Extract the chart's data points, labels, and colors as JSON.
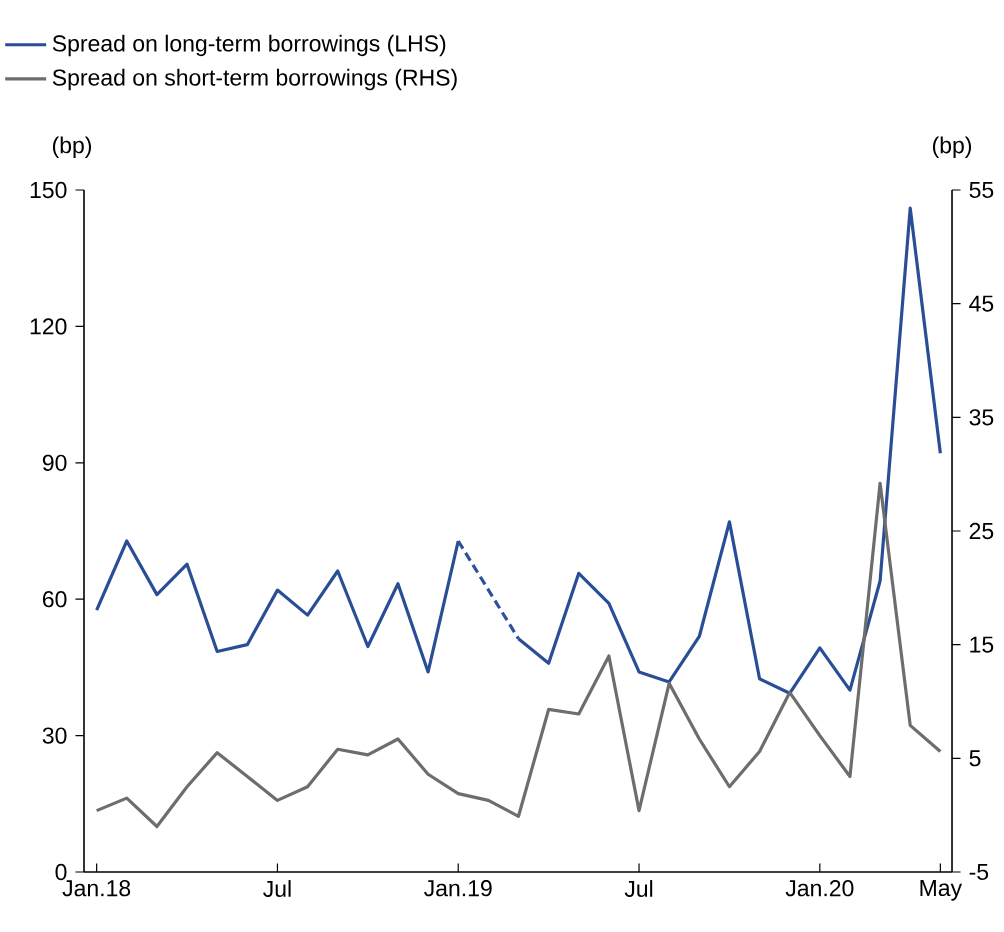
{
  "chart_data": {
    "type": "line",
    "ylabel": "(bp)",
    "y2label": "(bp)",
    "x": [
      "2018-01",
      "2018-02",
      "2018-03",
      "2018-04",
      "2018-05",
      "2018-06",
      "2018-07",
      "2018-08",
      "2018-09",
      "2018-10",
      "2018-11",
      "2018-12",
      "2019-01",
      "2019-02",
      "2019-03",
      "2019-04",
      "2019-05",
      "2019-06",
      "2019-07",
      "2019-08",
      "2019-09",
      "2019-10",
      "2019-11",
      "2019-12",
      "2020-01",
      "2020-02",
      "2020-03",
      "2020-04",
      "2020-05"
    ],
    "series": [
      {
        "name": "Spread on long-term borrowings (LHS)",
        "color": "#2a4e96",
        "axis": "y",
        "values": [
          57.6,
          72.8,
          61,
          67.7,
          48.5,
          50,
          62,
          56.5,
          66.2,
          49.6,
          63.4,
          44,
          72.8,
          null,
          51.3,
          45.9,
          65.7,
          59.1,
          44,
          41.8,
          51.8,
          77,
          42.5,
          39.3,
          49.3,
          40,
          64,
          146,
          92.1
        ]
      },
      {
        "color": "#2d519a",
        "axis": "y",
        "line_style": "dashed",
        "x": [
          "2019-01",
          "2019-03"
        ],
        "values": [
          72.8,
          51.3
        ]
      },
      {
        "name": "Spread on short-term borrowings (RHS)",
        "color": "#6d6d6d",
        "axis": "y2",
        "values": [
          0.4,
          1.5,
          -1,
          2.5,
          5.5,
          3.4,
          1.3,
          2.5,
          5.8,
          5.3,
          6.7,
          3.6,
          1.9,
          1.3,
          -0.1,
          9.3,
          8.9,
          14,
          0.4,
          11.6,
          6.7,
          2.5,
          5.6,
          10.8,
          7,
          3.4,
          29.2,
          7.9,
          5.6
        ]
      }
    ],
    "xlim": [
      "2017-12-19",
      "2020-05-13"
    ],
    "xticks": [
      {
        "value": "2018-01",
        "label": "Jan.18"
      },
      {
        "value": "2018-07",
        "label": "Jul"
      },
      {
        "value": "2019-01",
        "label": "Jan.19"
      },
      {
        "value": "2019-07",
        "label": "Jul"
      },
      {
        "value": "2020-01",
        "label": "Jan.20"
      },
      {
        "value": "2020-05",
        "label": "May"
      }
    ],
    "ylim": [
      0,
      150
    ],
    "yticks": [
      0,
      30,
      60,
      90,
      120,
      150
    ],
    "y2lim": [
      -5,
      55
    ],
    "y2ticks": [
      -5,
      5,
      15,
      25,
      35,
      45,
      55
    ],
    "grid": false,
    "legend": "top left",
    "line_style": "solid",
    "marker": "none"
  }
}
